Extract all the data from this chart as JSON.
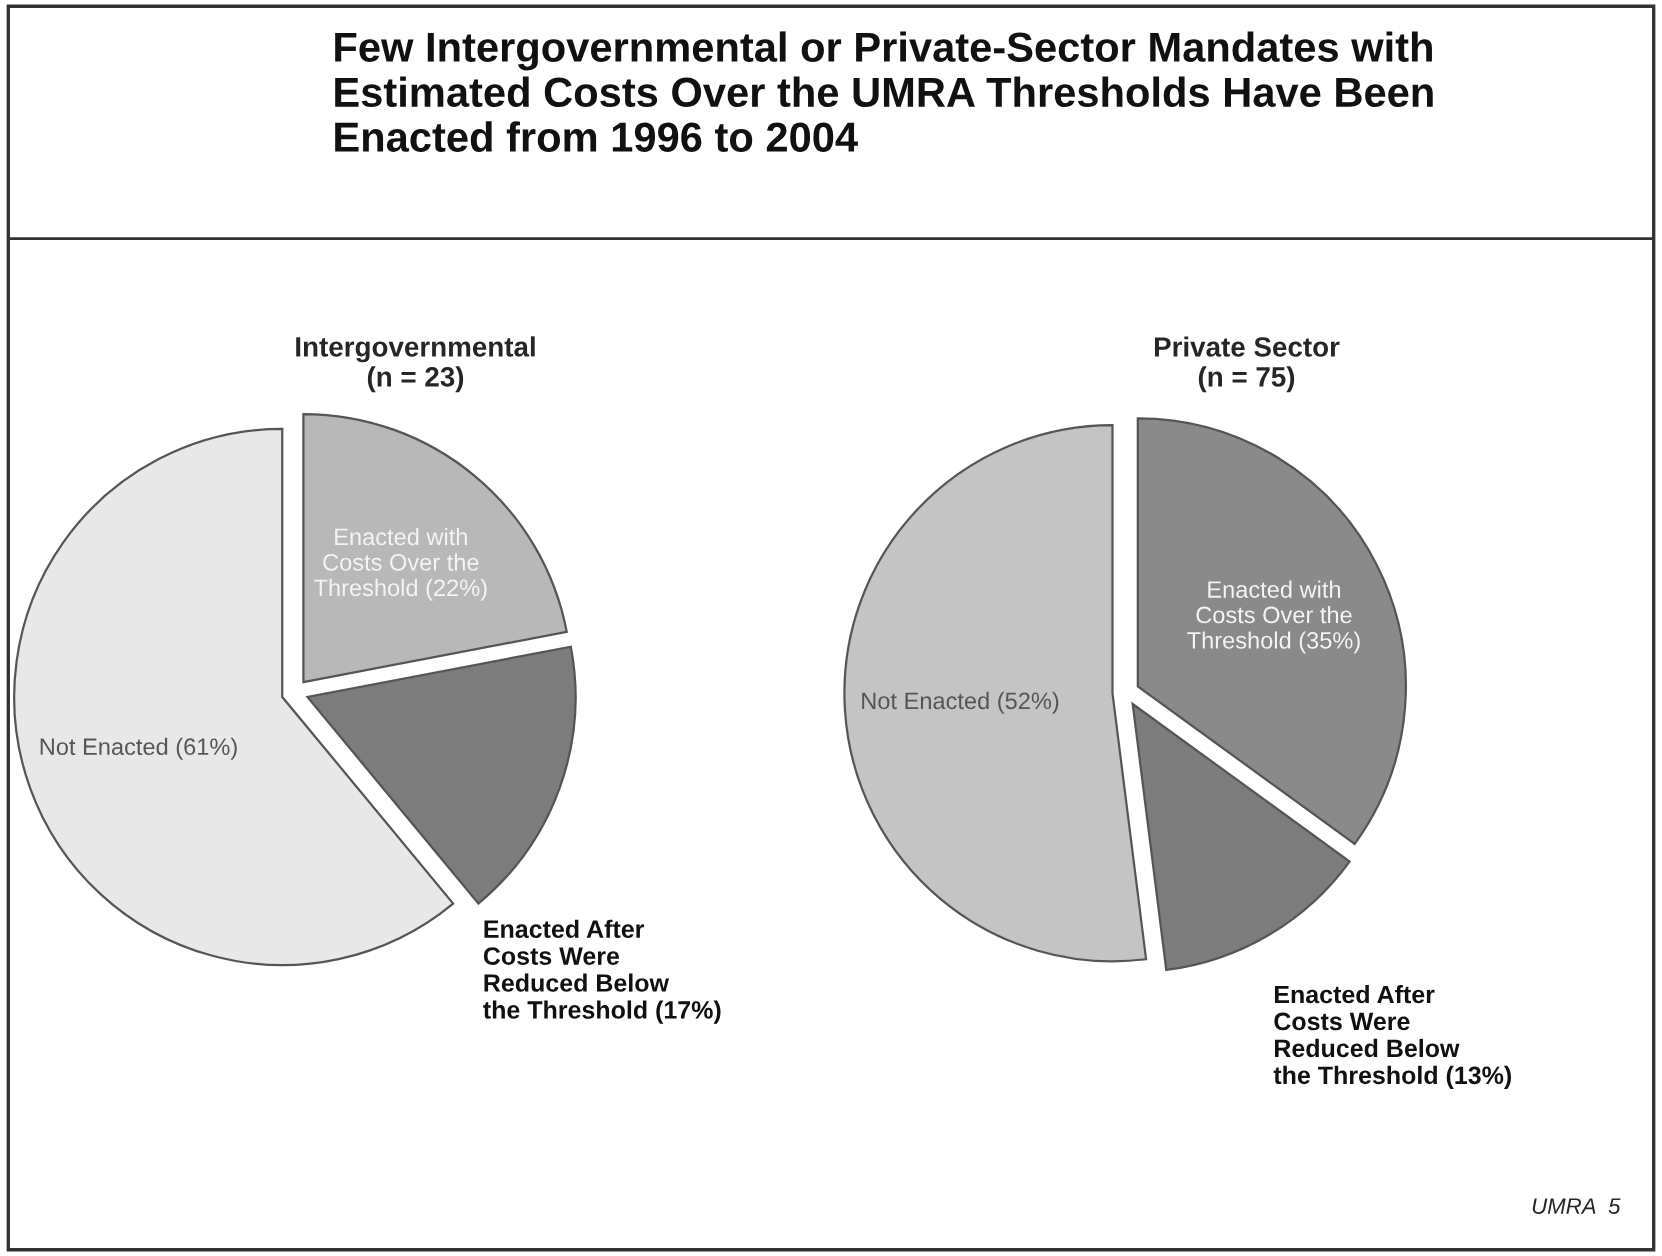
{
  "chart_data": [
    {
      "type": "pie",
      "title": "Few Intergovernmental or Private-Sector Mandates with\nEstimated Costs Over the UMRA Thresholds Have Been\nEnacted from 1996 to 2004",
      "subtitle": "Intergovernmental\n(n = 23)",
      "categories": [
        "Enacted with\nCosts Over the\nThreshold (22%)",
        "Enacted After\nCosts Were\nReduced Below\nthe Threshold (17%)",
        "Not Enacted (61%)"
      ],
      "values": [
        22,
        17,
        61
      ],
      "colors": [
        "#b8b8b8",
        "#7c7c7c",
        "#e8e8e8"
      ]
    },
    {
      "type": "pie",
      "subtitle": "Private Sector\n(n = 75)",
      "categories": [
        "Enacted with\nCosts Over the\nThreshold (35%)",
        "Enacted After\nCosts Were\nReduced Below\nthe Threshold (13%)",
        "Not Enacted (52%)"
      ],
      "values": [
        35,
        13,
        52
      ],
      "colors": [
        "#8a8a8a",
        "#7c7c7c",
        "#c4c4c4"
      ],
      "annotations": [
        "UMRA  5"
      ]
    }
  ]
}
